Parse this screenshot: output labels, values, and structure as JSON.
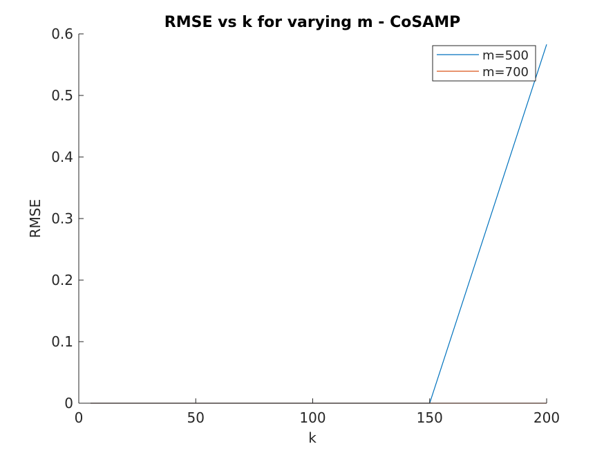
{
  "chart_data": {
    "type": "line",
    "title": "RMSE vs k for varying m - CoSAMP",
    "xlabel": "k",
    "ylabel": "RMSE",
    "xlim": [
      0,
      200
    ],
    "ylim": [
      0,
      0.6
    ],
    "xticks": [
      0,
      50,
      100,
      150,
      200
    ],
    "xtick_labels": [
      "0",
      "50",
      "100",
      "150",
      "200"
    ],
    "yticks": [
      0,
      0.1,
      0.2,
      0.3,
      0.4,
      0.5,
      0.6
    ],
    "ytick_labels": [
      "0",
      "0.1",
      "0.2",
      "0.3",
      "0.4",
      "0.5",
      "0.6"
    ],
    "grid": false,
    "legend_position": "top-right",
    "series": [
      {
        "name": "m=500",
        "color": "#0072BD",
        "x": [
          5,
          150,
          200
        ],
        "y": [
          0,
          0,
          0.583
        ]
      },
      {
        "name": "m=700",
        "color": "#D95319",
        "x": [
          5,
          200
        ],
        "y": [
          0,
          0
        ]
      }
    ]
  }
}
